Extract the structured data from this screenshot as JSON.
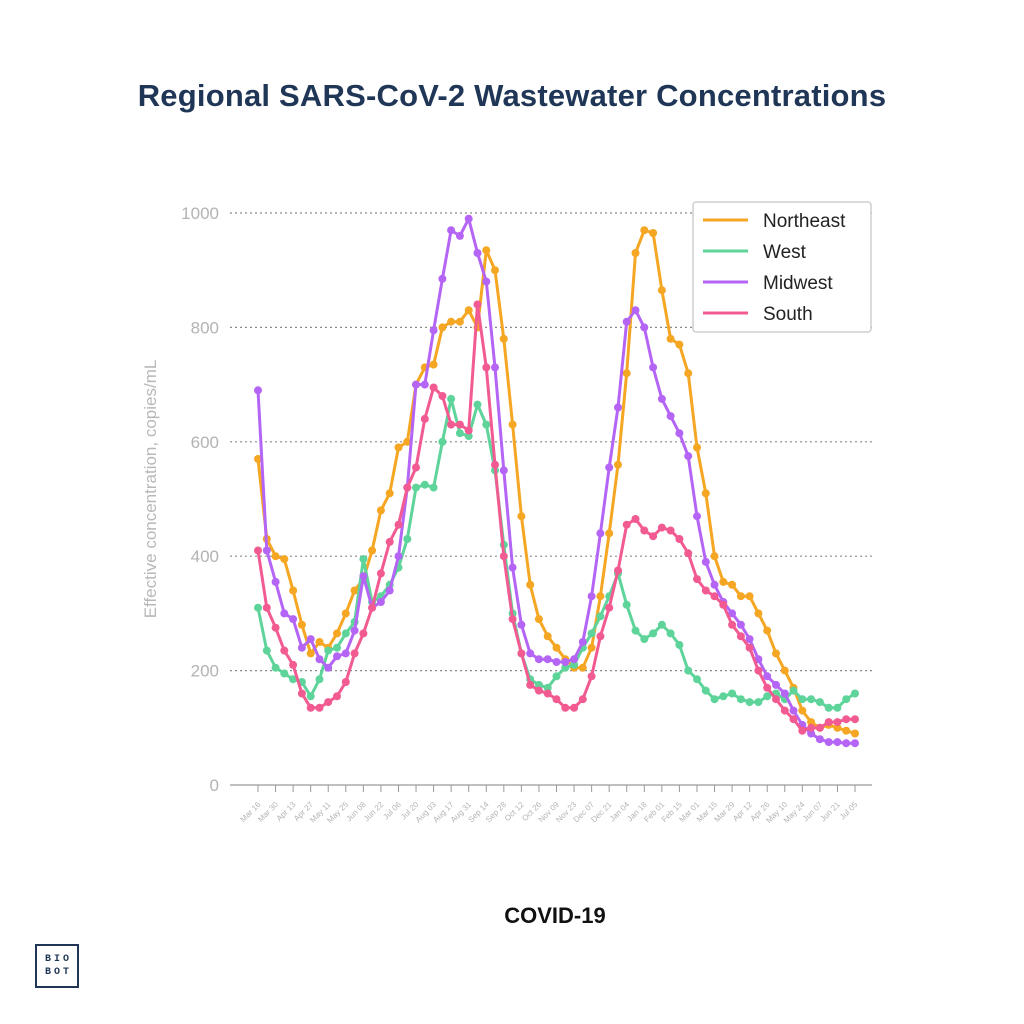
{
  "header": {
    "title": "Regional SARS-CoV-2 Wastewater Concentrations"
  },
  "footer": {
    "caption": "COVID-19"
  },
  "logo": {
    "line1": "BIO",
    "line2": "BOT"
  },
  "colors": {
    "Northeast": "#f5a623",
    "West": "#5ed49a",
    "Midwest": "#b565f5",
    "South": "#f25b92"
  },
  "chart_data": {
    "type": "line",
    "ylabel": "Effective concentration, copies/mL",
    "xlabel": "",
    "ylim": [
      0,
      1000
    ],
    "yticks": [
      0,
      200,
      400,
      600,
      800,
      1000
    ],
    "grid": true,
    "legend": "top-right",
    "x": [
      "Mar 16",
      "Mar 23",
      "Mar 30",
      "Apr 06",
      "Apr 13",
      "Apr 20",
      "Apr 27",
      "May 04",
      "May 11",
      "May 18",
      "May 25",
      "Jun 01",
      "Jun 08",
      "Jun 15",
      "Jun 22",
      "Jun 29",
      "Jul 06",
      "Jul 13",
      "Jul 20",
      "Jul 27",
      "Aug 03",
      "Aug 10",
      "Aug 17",
      "Aug 24",
      "Aug 31",
      "Sep 07",
      "Sep 14",
      "Sep 21",
      "Sep 28",
      "Oct 05",
      "Oct 12",
      "Oct 19",
      "Oct 26",
      "Nov 02",
      "Nov 09",
      "Nov 16",
      "Nov 23",
      "Nov 30",
      "Dec 07",
      "Dec 14",
      "Dec 21",
      "Dec 28",
      "Jan 04",
      "Jan 11",
      "Jan 18",
      "Jan 25",
      "Feb 01",
      "Feb 08",
      "Feb 15",
      "Feb 22",
      "Mar 01",
      "Mar 08",
      "Mar 15",
      "Mar 22",
      "Mar 29",
      "Apr 05",
      "Apr 12",
      "Apr 19",
      "Apr 26",
      "May 03",
      "May 10",
      "May 17",
      "May 24",
      "May 31",
      "Jun 07",
      "Jun 14",
      "Jun 21",
      "Jun 28",
      "Jul 05"
    ],
    "xticks": [
      "Mar 16",
      "Mar 30",
      "Apr 13",
      "Apr 27",
      "May 11",
      "May 25",
      "Jun 08",
      "Jun 22",
      "Jul 06",
      "Jul 20",
      "Aug 03",
      "Aug 17",
      "Aug 31",
      "Sep 14",
      "Sep 28",
      "Oct 12",
      "Oct 26",
      "Nov 09",
      "Nov 23",
      "Dec 07",
      "Dec 21",
      "Jan 04",
      "Jan 18",
      "Feb 01",
      "Feb 15",
      "Mar 01",
      "Mar 15",
      "Mar 29",
      "Apr 12",
      "Apr 26",
      "May 10",
      "May 24",
      "Jun 07",
      "Jun 21",
      "Jul 05"
    ],
    "series": [
      {
        "name": "Northeast",
        "values": [
          570,
          430,
          400,
          395,
          340,
          280,
          230,
          250,
          240,
          265,
          300,
          340,
          360,
          410,
          480,
          510,
          590,
          600,
          700,
          730,
          735,
          800,
          810,
          810,
          830,
          800,
          935,
          900,
          780,
          630,
          470,
          350,
          290,
          260,
          240,
          220,
          205,
          205,
          240,
          330,
          440,
          560,
          720,
          930,
          970,
          965,
          865,
          780,
          770,
          720,
          590,
          510,
          400,
          355,
          350,
          330,
          330,
          300,
          270,
          230,
          200,
          170,
          130,
          110,
          100,
          105,
          100,
          95,
          90
        ]
      },
      {
        "name": "West",
        "values": [
          310,
          235,
          205,
          195,
          185,
          180,
          155,
          185,
          235,
          240,
          265,
          285,
          395,
          320,
          330,
          350,
          380,
          430,
          520,
          525,
          520,
          600,
          675,
          615,
          610,
          665,
          630,
          550,
          420,
          300,
          230,
          185,
          175,
          170,
          190,
          205,
          210,
          240,
          265,
          295,
          330,
          370,
          315,
          270,
          255,
          265,
          280,
          265,
          245,
          200,
          185,
          165,
          150,
          155,
          160,
          150,
          145,
          145,
          155,
          160,
          150,
          165,
          150,
          150,
          145,
          135,
          135,
          150,
          160
        ]
      },
      {
        "name": "Midwest",
        "values": [
          690,
          410,
          355,
          300,
          290,
          240,
          255,
          220,
          205,
          225,
          230,
          270,
          365,
          310,
          320,
          340,
          400,
          520,
          700,
          700,
          795,
          885,
          970,
          960,
          990,
          930,
          880,
          730,
          550,
          380,
          280,
          230,
          220,
          220,
          215,
          215,
          220,
          250,
          330,
          440,
          555,
          660,
          810,
          830,
          800,
          730,
          675,
          645,
          615,
          575,
          470,
          390,
          350,
          320,
          300,
          280,
          255,
          220,
          190,
          175,
          160,
          130,
          105,
          90,
          80,
          75,
          75,
          73,
          73
        ]
      },
      {
        "name": "South",
        "values": [
          410,
          310,
          275,
          235,
          210,
          160,
          135,
          135,
          145,
          155,
          180,
          230,
          265,
          310,
          370,
          425,
          455,
          520,
          555,
          640,
          695,
          680,
          630,
          630,
          620,
          840,
          730,
          560,
          400,
          290,
          230,
          175,
          165,
          160,
          150,
          135,
          135,
          150,
          190,
          260,
          310,
          375,
          455,
          465,
          445,
          435,
          450,
          445,
          430,
          405,
          360,
          340,
          330,
          315,
          280,
          260,
          240,
          200,
          170,
          150,
          130,
          115,
          95,
          100,
          100,
          110,
          110,
          115,
          115
        ]
      }
    ]
  }
}
